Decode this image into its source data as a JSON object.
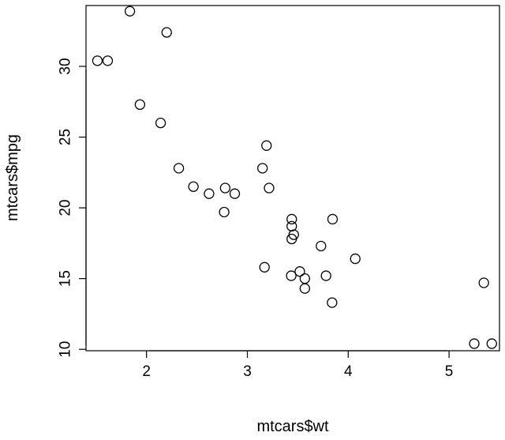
{
  "chart_data": {
    "type": "scatter",
    "title": "",
    "xlabel": "mtcars$wt",
    "ylabel": "mtcars$mpg",
    "xlim": [
      1.4,
      5.5
    ],
    "ylim": [
      9.9,
      34.3
    ],
    "x_ticks": [
      2,
      3,
      4,
      5
    ],
    "x_tick_labels": [
      "2",
      "3",
      "4",
      "5"
    ],
    "y_ticks": [
      10,
      15,
      20,
      25,
      30
    ],
    "y_tick_labels": [
      "10",
      "15",
      "20",
      "25",
      "30"
    ],
    "grid": false,
    "marker": "open-circle",
    "points": [
      {
        "x": 2.62,
        "y": 21.0
      },
      {
        "x": 2.875,
        "y": 21.0
      },
      {
        "x": 2.32,
        "y": 22.8
      },
      {
        "x": 3.215,
        "y": 21.4
      },
      {
        "x": 3.44,
        "y": 18.7
      },
      {
        "x": 3.46,
        "y": 18.1
      },
      {
        "x": 3.57,
        "y": 14.3
      },
      {
        "x": 3.19,
        "y": 24.4
      },
      {
        "x": 3.15,
        "y": 22.8
      },
      {
        "x": 3.44,
        "y": 19.2
      },
      {
        "x": 3.44,
        "y": 17.8
      },
      {
        "x": 4.07,
        "y": 16.4
      },
      {
        "x": 3.73,
        "y": 17.3
      },
      {
        "x": 3.78,
        "y": 15.2
      },
      {
        "x": 5.25,
        "y": 10.4
      },
      {
        "x": 5.424,
        "y": 10.4
      },
      {
        "x": 5.345,
        "y": 14.7
      },
      {
        "x": 2.2,
        "y": 32.4
      },
      {
        "x": 1.615,
        "y": 30.4
      },
      {
        "x": 1.835,
        "y": 33.9
      },
      {
        "x": 2.465,
        "y": 21.5
      },
      {
        "x": 3.52,
        "y": 15.5
      },
      {
        "x": 3.435,
        "y": 15.2
      },
      {
        "x": 3.84,
        "y": 13.3
      },
      {
        "x": 3.845,
        "y": 19.2
      },
      {
        "x": 1.935,
        "y": 27.3
      },
      {
        "x": 2.14,
        "y": 26.0
      },
      {
        "x": 1.513,
        "y": 30.4
      },
      {
        "x": 3.17,
        "y": 15.8
      },
      {
        "x": 2.77,
        "y": 19.7
      },
      {
        "x": 3.57,
        "y": 15.0
      },
      {
        "x": 2.78,
        "y": 21.4
      }
    ]
  }
}
